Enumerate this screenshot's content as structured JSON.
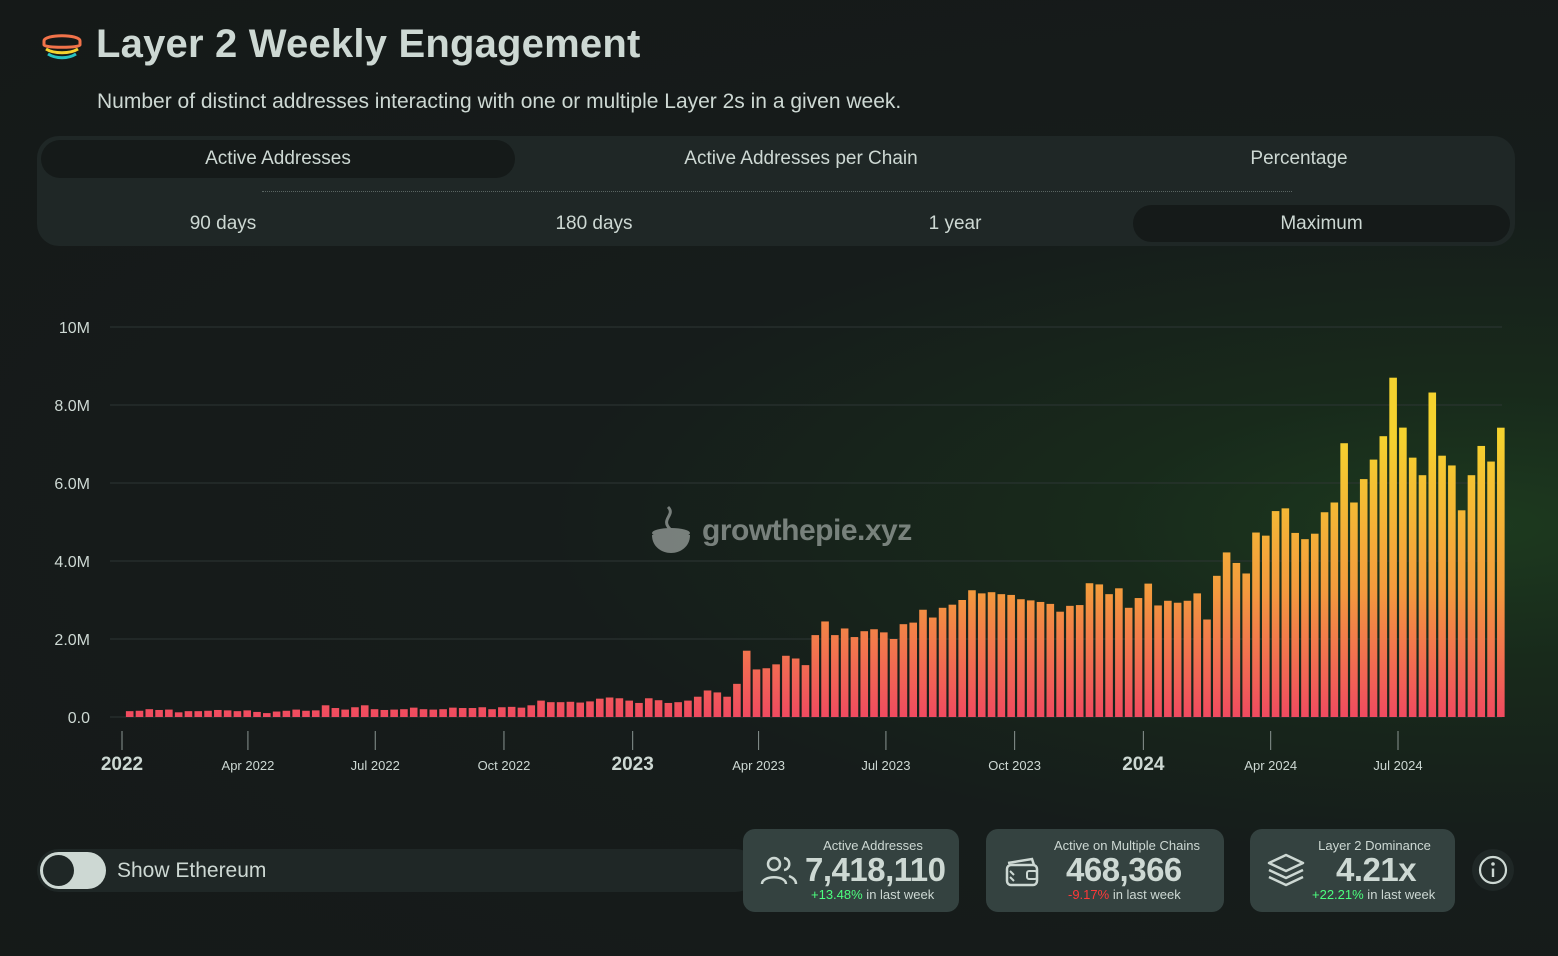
{
  "header": {
    "title": "Layer 2 Weekly Engagement",
    "subtitle": "Number of distinct addresses interacting with one or multiple Layer 2s in a given week."
  },
  "tabs": [
    {
      "label": "Active Addresses",
      "active": true
    },
    {
      "label": "Active Addresses per Chain",
      "active": false
    },
    {
      "label": "Percentage",
      "active": false
    }
  ],
  "ranges": [
    {
      "label": "90 days",
      "active": false
    },
    {
      "label": "180 days",
      "active": false
    },
    {
      "label": "1 year",
      "active": false
    },
    {
      "label": "Maximum",
      "active": true
    }
  ],
  "watermark": "growthepie.xyz",
  "toggle": {
    "label": "Show Ethereum",
    "on": false
  },
  "cards": [
    {
      "label": "Active Addresses",
      "value": "7,418,110",
      "change": "+13.48%",
      "change_suffix": " in last week",
      "change_sign": "positive",
      "icon": "users-icon"
    },
    {
      "label": "Active on Multiple Chains",
      "value": "468,366",
      "change": "-9.17%",
      "change_suffix": " in last week",
      "change_sign": "negative",
      "icon": "wallet-icon"
    },
    {
      "label": "Layer 2 Dominance",
      "value": "4.21x",
      "change": "+22.21%",
      "change_suffix": " in last week",
      "change_sign": "positive",
      "icon": "layers-icon"
    }
  ],
  "colors": {
    "bar_top": "#f5d22e",
    "bar_mid": "#f39a3d",
    "bar_bottom": "#f04a60",
    "positive": "#4cff7e",
    "negative": "#ff3838",
    "text": "#cdd8d3"
  },
  "chart_data": {
    "type": "bar",
    "x_start": "2022-01-03",
    "y_tick_labels": [
      "0.0",
      "2.0M",
      "4.0M",
      "6.0M",
      "8.0M",
      "10M"
    ],
    "ylim": [
      0,
      10000000
    ],
    "x_tick_labels": [
      {
        "label": "2022",
        "major": true
      },
      {
        "label": "Apr 2022",
        "major": false
      },
      {
        "label": "Jul 2022",
        "major": false
      },
      {
        "label": "Oct 2022",
        "major": false
      },
      {
        "label": "2023",
        "major": true
      },
      {
        "label": "Apr 2023",
        "major": false
      },
      {
        "label": "Jul 2023",
        "major": false
      },
      {
        "label": "Oct 2023",
        "major": false
      },
      {
        "label": "2024",
        "major": true
      },
      {
        "label": "Apr 2024",
        "major": false
      },
      {
        "label": "Jul 2024",
        "major": false
      }
    ],
    "series": [
      {
        "values": [
          150000,
          160000,
          200000,
          180000,
          190000,
          120000,
          150000,
          150000,
          160000,
          180000,
          170000,
          150000,
          170000,
          130000,
          100000,
          140000,
          160000,
          190000,
          160000,
          170000,
          300000,
          230000,
          190000,
          250000,
          300000,
          200000,
          180000,
          190000,
          200000,
          240000,
          200000,
          190000,
          200000,
          240000,
          230000,
          230000,
          250000,
          200000,
          250000,
          260000,
          240000,
          300000,
          420000,
          380000,
          380000,
          390000,
          370000,
          400000,
          470000,
          500000,
          480000,
          420000,
          360000,
          480000,
          430000,
          360000,
          380000,
          420000,
          520000,
          680000,
          630000,
          520000,
          850000,
          1700000,
          1220000,
          1250000,
          1350000,
          1570000,
          1500000,
          1330000,
          2100000,
          2450000,
          2100000,
          2270000,
          2050000,
          2200000,
          2250000,
          2170000,
          2000000,
          2380000,
          2420000,
          2750000,
          2550000,
          2800000,
          2880000,
          3000000,
          3250000,
          3170000,
          3200000,
          3150000,
          3130000,
          3020000,
          2990000,
          2950000,
          2900000,
          2700000,
          2850000,
          2870000,
          3430000,
          3400000,
          3150000,
          3300000,
          2800000,
          3050000,
          3420000,
          2860000,
          2980000,
          2930000,
          2980000,
          3170000,
          2500000,
          3620000,
          4220000,
          3950000,
          3680000,
          4730000,
          4650000,
          5280000,
          5350000,
          4720000,
          4560000,
          4700000,
          5250000,
          5500000,
          7020000,
          5500000,
          6100000,
          6600000,
          7200000,
          8700000,
          7420000,
          6650000,
          6200000,
          8320000,
          6700000,
          6450000,
          5300000,
          6200000,
          6950000,
          6550000,
          7418110
        ]
      }
    ],
    "legend": "none",
    "grid": true
  }
}
